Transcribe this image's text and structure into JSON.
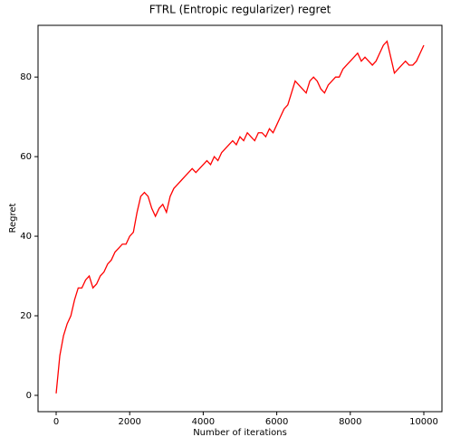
{
  "chart_data": {
    "type": "line",
    "title": "FTRL (Entropic regularizer) regret",
    "xlabel": "Number of iterations",
    "ylabel": "Regret",
    "x": [
      0,
      100,
      200,
      300,
      400,
      500,
      600,
      700,
      800,
      900,
      1000,
      1100,
      1200,
      1300,
      1400,
      1500,
      1600,
      1700,
      1800,
      1900,
      2000,
      2100,
      2200,
      2300,
      2400,
      2500,
      2600,
      2700,
      2800,
      2900,
      3000,
      3100,
      3200,
      3300,
      3400,
      3500,
      3600,
      3700,
      3800,
      3900,
      4000,
      4100,
      4200,
      4300,
      4400,
      4500,
      4600,
      4700,
      4800,
      4900,
      5000,
      5100,
      5200,
      5300,
      5400,
      5500,
      5600,
      5700,
      5800,
      5900,
      6000,
      6100,
      6200,
      6300,
      6400,
      6500,
      6600,
      6700,
      6800,
      6900,
      7000,
      7100,
      7200,
      7300,
      7400,
      7500,
      7600,
      7700,
      7800,
      7900,
      8000,
      8100,
      8200,
      8300,
      8400,
      8500,
      8600,
      8700,
      8800,
      8900,
      9000,
      9100,
      9200,
      9300,
      9400,
      9500,
      9600,
      9700,
      9800,
      9900,
      10000
    ],
    "series": [
      {
        "name": "regret",
        "color": "#ff0000",
        "values": [
          0.5,
          10,
          15,
          18,
          20,
          24,
          27,
          27,
          29,
          30,
          27,
          28,
          30,
          31,
          33,
          34,
          36,
          37,
          38,
          38,
          40,
          41,
          46,
          50,
          51,
          50,
          47,
          45,
          47,
          48,
          46,
          50,
          52,
          53,
          54,
          55,
          56,
          57,
          56,
          57,
          58,
          59,
          58,
          60,
          59,
          61,
          62,
          63,
          64,
          63,
          65,
          64,
          66,
          65,
          64,
          66,
          66,
          65,
          67,
          66,
          68,
          70,
          72,
          73,
          76,
          79,
          78,
          77,
          76,
          79,
          80,
          79,
          77,
          76,
          78,
          79,
          80,
          80,
          82,
          83,
          84,
          85,
          86,
          84,
          85,
          84,
          83,
          84,
          86,
          88,
          89,
          85,
          81,
          82,
          83,
          84,
          83,
          83,
          84,
          86,
          88
        ]
      }
    ],
    "xlim": [
      -493,
      10493
    ],
    "ylim": [
      -4.1,
      93
    ],
    "xticks": [
      0,
      2000,
      4000,
      6000,
      8000,
      10000
    ],
    "yticks": [
      0,
      20,
      40,
      60,
      80
    ],
    "grid": false,
    "legend": false
  }
}
